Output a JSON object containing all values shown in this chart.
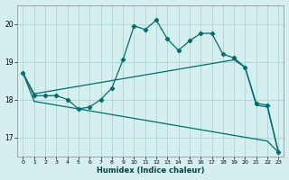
{
  "xlabel": "Humidex (Indice chaleur)",
  "bg_color": "#d5eeee",
  "grid_color": "#b0d8d8",
  "line_color": "#006e6e",
  "xlim": [
    -0.5,
    23.5
  ],
  "ylim": [
    16.5,
    20.5
  ],
  "yticks": [
    17,
    18,
    19,
    20
  ],
  "xticks": [
    0,
    1,
    2,
    3,
    4,
    5,
    6,
    7,
    8,
    9,
    10,
    11,
    12,
    13,
    14,
    15,
    16,
    17,
    18,
    19,
    20,
    21,
    22,
    23
  ],
  "curve1_x": [
    0,
    1,
    2,
    3,
    4,
    5,
    6,
    7,
    8,
    9,
    10,
    11,
    12,
    13,
    14,
    15,
    16,
    17,
    18,
    19,
    20,
    21,
    22,
    23
  ],
  "curve1_y": [
    18.7,
    18.1,
    18.1,
    18.1,
    18.0,
    17.75,
    17.8,
    18.0,
    18.3,
    19.05,
    19.95,
    19.85,
    20.1,
    19.6,
    19.3,
    19.55,
    19.75,
    19.75,
    19.2,
    19.1,
    18.85,
    17.9,
    17.85,
    16.6
  ],
  "curve2_x": [
    0,
    1,
    2,
    3,
    4,
    5,
    6,
    7,
    8,
    9,
    10,
    11,
    12,
    13,
    14,
    15,
    16,
    17,
    18,
    19,
    20,
    21,
    22,
    23
  ],
  "curve2_y": [
    18.7,
    18.15,
    18.2,
    18.25,
    18.3,
    18.35,
    18.4,
    18.45,
    18.5,
    18.55,
    18.6,
    18.65,
    18.7,
    18.75,
    18.8,
    18.85,
    18.9,
    18.95,
    19.0,
    19.05,
    18.85,
    17.85,
    17.8,
    16.6
  ],
  "curve3_x": [
    0,
    1,
    2,
    3,
    4,
    5,
    6,
    7,
    8,
    9,
    10,
    11,
    12,
    13,
    14,
    15,
    16,
    17,
    18,
    19,
    20,
    21,
    22,
    23
  ],
  "curve3_y": [
    18.7,
    17.95,
    17.9,
    17.85,
    17.8,
    17.75,
    17.7,
    17.65,
    17.6,
    17.55,
    17.5,
    17.45,
    17.4,
    17.35,
    17.3,
    17.25,
    17.2,
    17.15,
    17.1,
    17.05,
    17.0,
    16.95,
    16.9,
    16.6
  ]
}
